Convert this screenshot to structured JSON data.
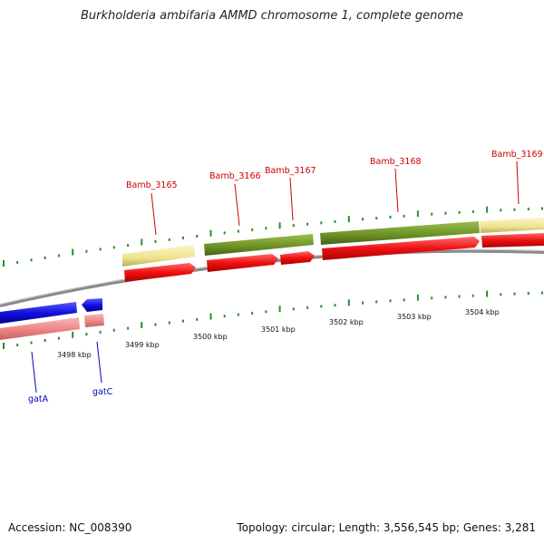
{
  "title": "Burkholderia ambifaria AMMD chromosome 1, complete genome",
  "footer": {
    "accession": "Accession: NC_008390",
    "summary": "Topology: circular; Length: 3,556,545 bp; Genes: 3,281"
  },
  "scale_ticks": [
    "3498 kbp",
    "3499 kbp",
    "3500 kbp",
    "3501 kbp",
    "3502 kbp",
    "3503 kbp",
    "3504 kbp"
  ],
  "top_genes": [
    "Bamb_3165",
    "Bamb_3166",
    "Bamb_3167",
    "Bamb_3168",
    "Bamb_3169"
  ],
  "bottom_genes": [
    "gatA",
    "gatC"
  ],
  "colors": {
    "cog_yellow": "#f2e89a",
    "cog_green": "#6b8e23",
    "cds_red": "#ee1111",
    "cds_pink": "#ee8888",
    "cds_blue": "#1111dd",
    "backbone": "#8a8a8a",
    "tick_green": "#2e8b2e",
    "label_red": "#cc0000",
    "label_blue": "#0000bb"
  }
}
